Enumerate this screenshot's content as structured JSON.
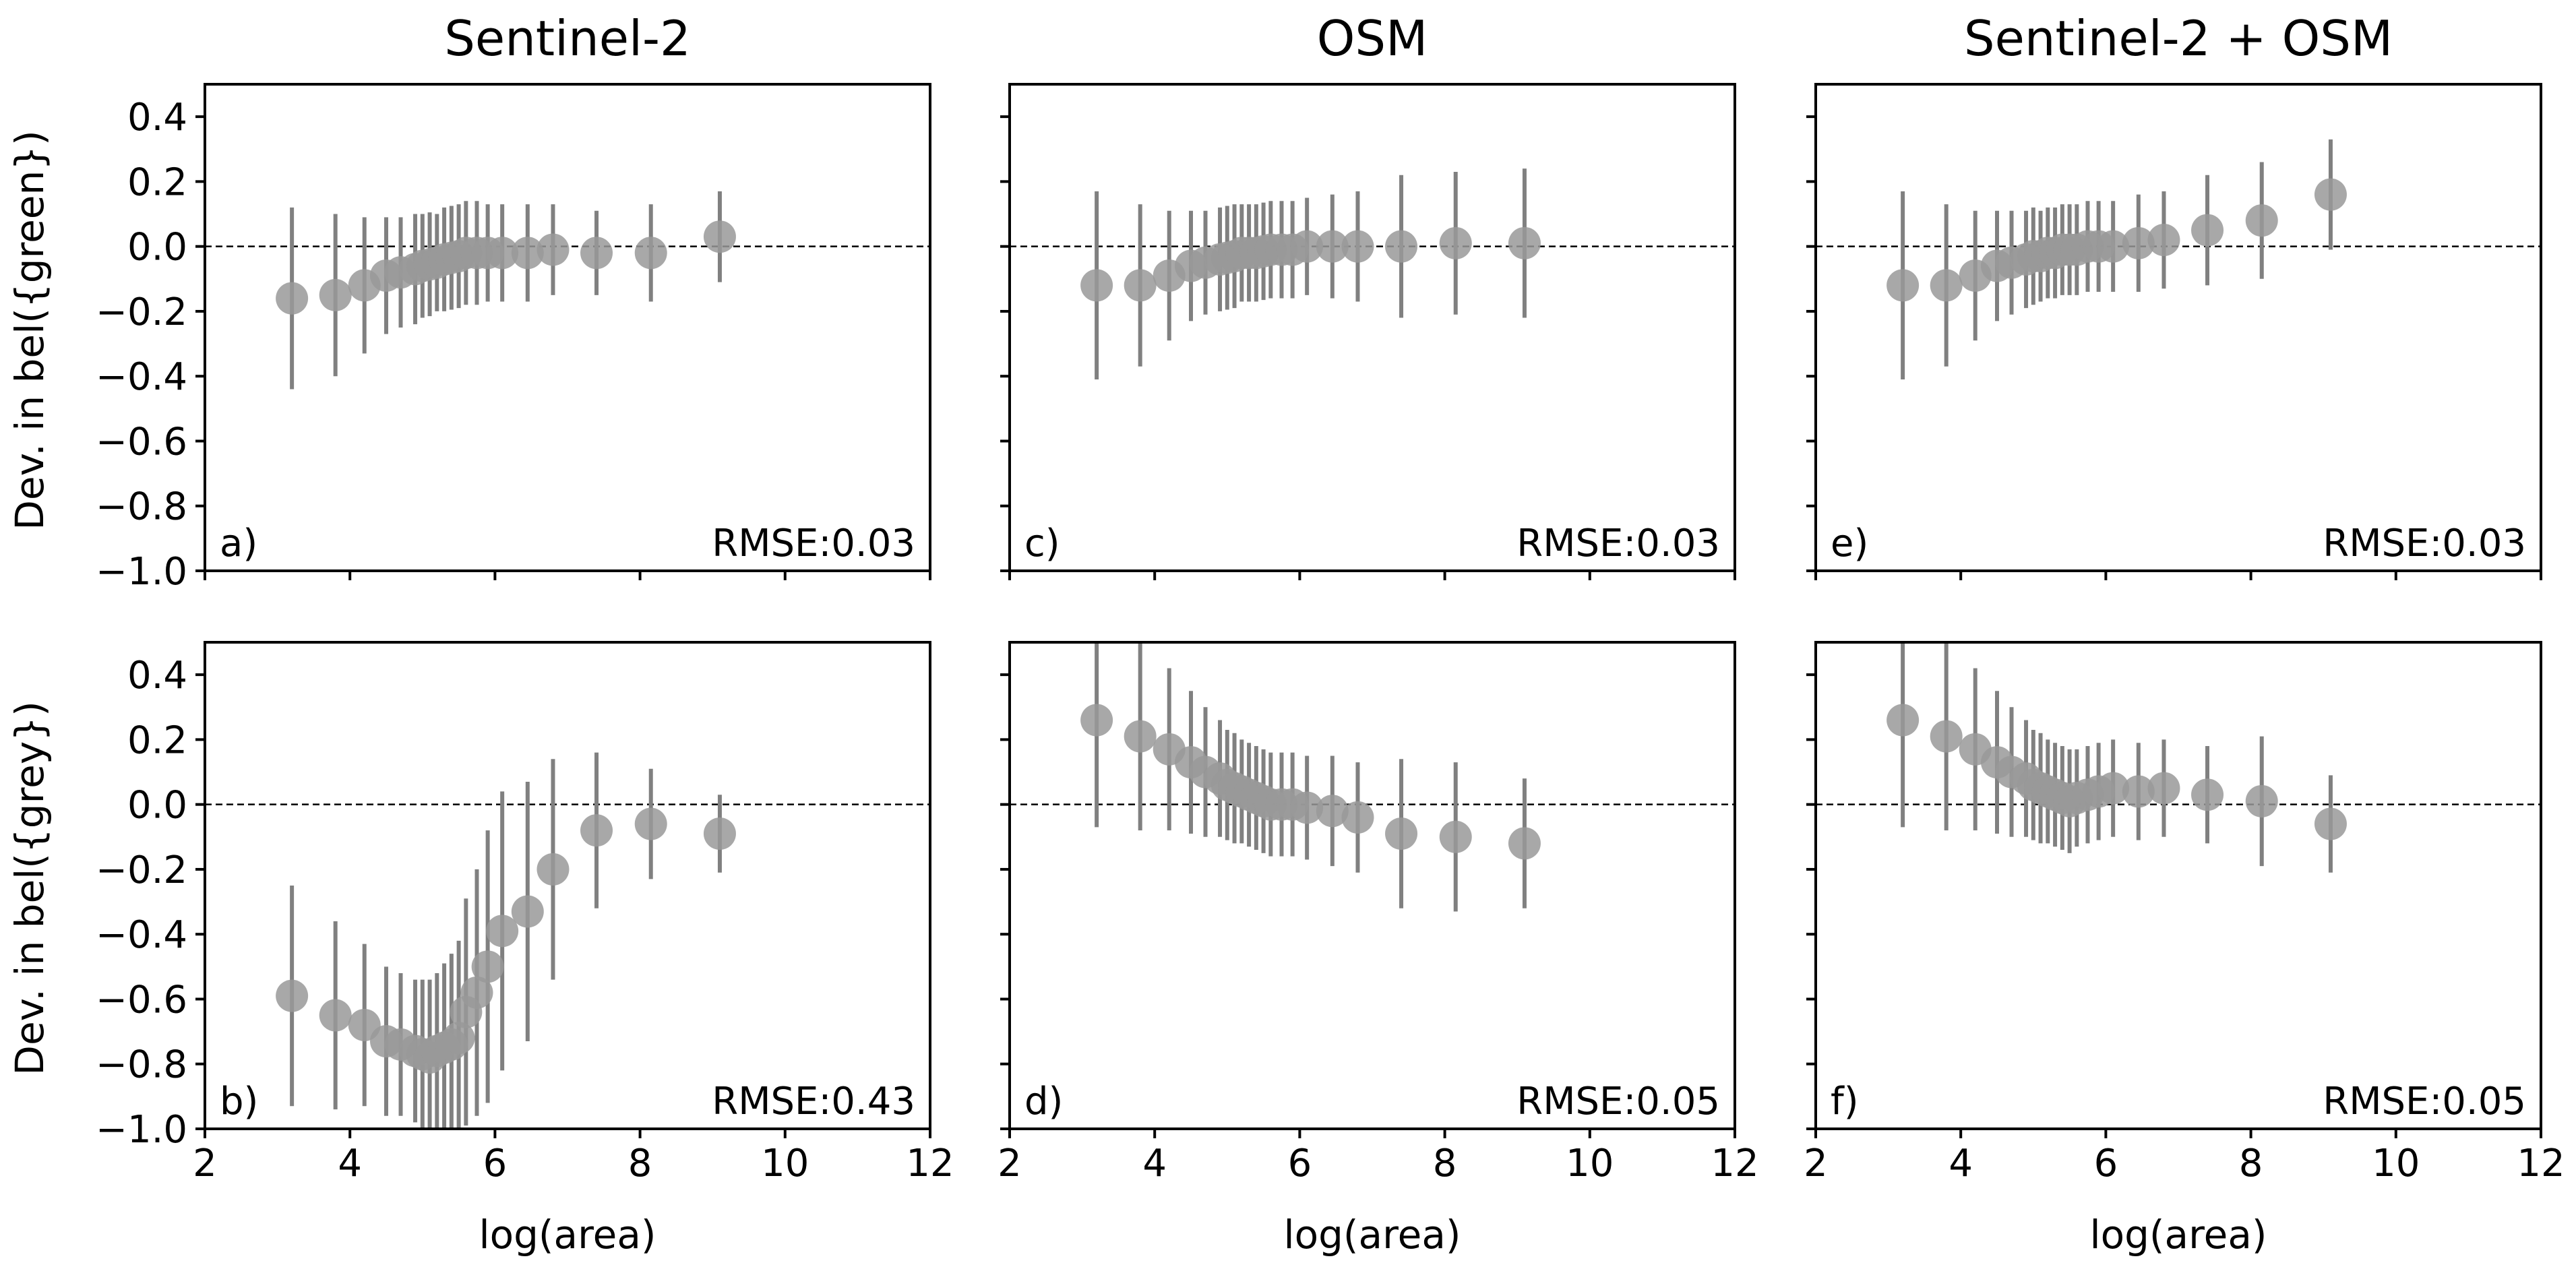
{
  "chart_data": [
    {
      "type": "scatter",
      "panel": "a)",
      "title": "Sentinel-2",
      "xlabel": "",
      "ylabel": "Dev. in bel({green})",
      "annotation": "RMSE:0.03",
      "xlim": [
        2,
        12
      ],
      "ylim": [
        -1.0,
        0.5
      ],
      "x_ticks": [
        2,
        4,
        6,
        8,
        10,
        12
      ],
      "y_ticks": [
        0.4,
        0.2,
        0.0,
        -0.2,
        -0.4,
        -0.6,
        -0.8,
        -1.0
      ],
      "x_tick_labels": [
        "2",
        "4",
        "6",
        "8",
        "10",
        "12"
      ],
      "y_tick_labels": [
        "0.4",
        "0.2",
        "0.0",
        "−0.2",
        "−0.4",
        "−0.6",
        "−0.8",
        "−1.0"
      ],
      "show_x_tick_labels": false,
      "show_y_tick_labels": true,
      "x": [
        3.2,
        3.8,
        4.2,
        4.5,
        4.7,
        4.9,
        5.0,
        5.1,
        5.2,
        5.3,
        5.4,
        5.5,
        5.6,
        5.75,
        5.9,
        6.1,
        6.45,
        6.8,
        7.4,
        8.15,
        9.1
      ],
      "y": [
        -0.16,
        -0.15,
        -0.12,
        -0.09,
        -0.08,
        -0.07,
        -0.06,
        -0.055,
        -0.05,
        -0.04,
        -0.035,
        -0.03,
        -0.02,
        -0.02,
        -0.02,
        -0.02,
        -0.02,
        -0.01,
        -0.02,
        -0.02,
        0.03
      ],
      "err": [
        0.28,
        0.25,
        0.21,
        0.18,
        0.17,
        0.17,
        0.16,
        0.16,
        0.15,
        0.16,
        0.16,
        0.16,
        0.16,
        0.16,
        0.15,
        0.15,
        0.15,
        0.14,
        0.13,
        0.15,
        0.14
      ]
    },
    {
      "type": "scatter",
      "panel": "b)",
      "title": "",
      "xlabel": "log(area)",
      "ylabel": "Dev. in bel({grey})",
      "annotation": "RMSE:0.43",
      "xlim": [
        2,
        12
      ],
      "ylim": [
        -1.0,
        0.5
      ],
      "x_ticks": [
        2,
        4,
        6,
        8,
        10,
        12
      ],
      "y_ticks": [
        0.4,
        0.2,
        0.0,
        -0.2,
        -0.4,
        -0.6,
        -0.8,
        -1.0
      ],
      "x_tick_labels": [
        "2",
        "4",
        "6",
        "8",
        "10",
        "12"
      ],
      "y_tick_labels": [
        "0.4",
        "0.2",
        "0.0",
        "−0.2",
        "−0.4",
        "−0.6",
        "−0.8",
        "−1.0"
      ],
      "show_x_tick_labels": true,
      "show_y_tick_labels": true,
      "x": [
        3.2,
        3.8,
        4.2,
        4.5,
        4.7,
        4.9,
        5.0,
        5.1,
        5.2,
        5.3,
        5.4,
        5.5,
        5.6,
        5.75,
        5.9,
        6.1,
        6.45,
        6.8,
        7.4,
        8.15,
        9.1
      ],
      "y": [
        -0.59,
        -0.65,
        -0.68,
        -0.73,
        -0.74,
        -0.76,
        -0.77,
        -0.78,
        -0.76,
        -0.75,
        -0.74,
        -0.72,
        -0.64,
        -0.58,
        -0.5,
        -0.39,
        -0.33,
        -0.2,
        -0.08,
        -0.06,
        -0.09
      ],
      "err": [
        0.34,
        0.29,
        0.25,
        0.23,
        0.22,
        0.22,
        0.23,
        0.24,
        0.24,
        0.26,
        0.28,
        0.3,
        0.35,
        0.38,
        0.42,
        0.43,
        0.4,
        0.34,
        0.24,
        0.17,
        0.12
      ]
    },
    {
      "type": "scatter",
      "panel": "c)",
      "title": "OSM",
      "xlabel": "",
      "ylabel": "",
      "annotation": "RMSE:0.03",
      "xlim": [
        2,
        12
      ],
      "ylim": [
        -1.0,
        0.5
      ],
      "x_ticks": [
        2,
        4,
        6,
        8,
        10,
        12
      ],
      "y_ticks": [
        0.4,
        0.2,
        0.0,
        -0.2,
        -0.4,
        -0.6,
        -0.8,
        -1.0
      ],
      "x_tick_labels": [
        "2",
        "4",
        "6",
        "8",
        "10",
        "12"
      ],
      "y_tick_labels": [
        "0.4",
        "0.2",
        "0.0",
        "−0.2",
        "−0.4",
        "−0.6",
        "−0.8",
        "−1.0"
      ],
      "show_x_tick_labels": false,
      "show_y_tick_labels": false,
      "x": [
        3.2,
        3.8,
        4.2,
        4.5,
        4.7,
        4.9,
        5.0,
        5.1,
        5.2,
        5.3,
        5.4,
        5.5,
        5.6,
        5.75,
        5.9,
        6.1,
        6.45,
        6.8,
        7.4,
        8.15,
        9.1
      ],
      "y": [
        -0.12,
        -0.12,
        -0.09,
        -0.06,
        -0.05,
        -0.04,
        -0.035,
        -0.03,
        -0.02,
        -0.02,
        -0.02,
        -0.015,
        -0.01,
        -0.01,
        -0.01,
        0.0,
        0.0,
        0.0,
        0.0,
        0.01,
        0.01
      ],
      "err": [
        0.29,
        0.25,
        0.2,
        0.17,
        0.16,
        0.16,
        0.16,
        0.16,
        0.15,
        0.15,
        0.15,
        0.15,
        0.15,
        0.15,
        0.15,
        0.15,
        0.16,
        0.17,
        0.22,
        0.22,
        0.23
      ]
    },
    {
      "type": "scatter",
      "panel": "d)",
      "title": "",
      "xlabel": "log(area)",
      "ylabel": "",
      "annotation": "RMSE:0.05",
      "xlim": [
        2,
        12
      ],
      "ylim": [
        -1.0,
        0.5
      ],
      "x_ticks": [
        2,
        4,
        6,
        8,
        10,
        12
      ],
      "y_ticks": [
        0.4,
        0.2,
        0.0,
        -0.2,
        -0.4,
        -0.6,
        -0.8,
        -1.0
      ],
      "x_tick_labels": [
        "2",
        "4",
        "6",
        "8",
        "10",
        "12"
      ],
      "y_tick_labels": [
        "0.4",
        "0.2",
        "0.0",
        "−0.2",
        "−0.4",
        "−0.6",
        "−0.8",
        "−1.0"
      ],
      "show_x_tick_labels": true,
      "show_y_tick_labels": false,
      "x": [
        3.2,
        3.8,
        4.2,
        4.5,
        4.7,
        4.9,
        5.0,
        5.1,
        5.2,
        5.3,
        5.4,
        5.5,
        5.6,
        5.75,
        5.9,
        6.1,
        6.45,
        6.8,
        7.4,
        8.15,
        9.1
      ],
      "y": [
        0.26,
        0.21,
        0.17,
        0.13,
        0.1,
        0.08,
        0.06,
        0.05,
        0.04,
        0.03,
        0.02,
        0.01,
        0.0,
        0.0,
        0.0,
        -0.01,
        -0.02,
        -0.04,
        -0.09,
        -0.1,
        -0.12
      ],
      "err": [
        0.33,
        0.29,
        0.25,
        0.22,
        0.2,
        0.18,
        0.17,
        0.17,
        0.16,
        0.16,
        0.16,
        0.16,
        0.16,
        0.16,
        0.16,
        0.16,
        0.17,
        0.17,
        0.23,
        0.23,
        0.2
      ]
    },
    {
      "type": "scatter",
      "panel": "e)",
      "title": "Sentinel-2 + OSM",
      "xlabel": "",
      "ylabel": "",
      "annotation": "RMSE:0.03",
      "xlim": [
        2,
        12
      ],
      "ylim": [
        -1.0,
        0.5
      ],
      "x_ticks": [
        2,
        4,
        6,
        8,
        10,
        12
      ],
      "y_ticks": [
        0.4,
        0.2,
        0.0,
        -0.2,
        -0.4,
        -0.6,
        -0.8,
        -1.0
      ],
      "x_tick_labels": [
        "2",
        "4",
        "6",
        "8",
        "10",
        "12"
      ],
      "y_tick_labels": [
        "0.4",
        "0.2",
        "0.0",
        "−0.2",
        "−0.4",
        "−0.6",
        "−0.8",
        "−1.0"
      ],
      "show_x_tick_labels": false,
      "show_y_tick_labels": false,
      "x": [
        3.2,
        3.8,
        4.2,
        4.5,
        4.7,
        4.9,
        5.0,
        5.1,
        5.2,
        5.3,
        5.4,
        5.5,
        5.6,
        5.75,
        5.9,
        6.1,
        6.45,
        6.8,
        7.4,
        8.15,
        9.1
      ],
      "y": [
        -0.12,
        -0.12,
        -0.09,
        -0.06,
        -0.05,
        -0.04,
        -0.03,
        -0.03,
        -0.02,
        -0.02,
        -0.01,
        -0.01,
        -0.01,
        0.0,
        0.0,
        0.0,
        0.01,
        0.02,
        0.05,
        0.08,
        0.16
      ],
      "err": [
        0.29,
        0.25,
        0.2,
        0.17,
        0.16,
        0.15,
        0.15,
        0.14,
        0.14,
        0.14,
        0.14,
        0.14,
        0.14,
        0.14,
        0.14,
        0.14,
        0.15,
        0.15,
        0.17,
        0.18,
        0.17
      ]
    },
    {
      "type": "scatter",
      "panel": "f)",
      "title": "",
      "xlabel": "log(area)",
      "ylabel": "",
      "annotation": "RMSE:0.05",
      "xlim": [
        2,
        12
      ],
      "ylim": [
        -1.0,
        0.5
      ],
      "x_ticks": [
        2,
        4,
        6,
        8,
        10,
        12
      ],
      "y_ticks": [
        0.4,
        0.2,
        0.0,
        -0.2,
        -0.4,
        -0.6,
        -0.8,
        -1.0
      ],
      "x_tick_labels": [
        "2",
        "4",
        "6",
        "8",
        "10",
        "12"
      ],
      "y_tick_labels": [
        "0.4",
        "0.2",
        "0.0",
        "−0.2",
        "−0.4",
        "−0.6",
        "−0.8",
        "−1.0"
      ],
      "show_x_tick_labels": true,
      "show_y_tick_labels": false,
      "x": [
        3.2,
        3.8,
        4.2,
        4.5,
        4.7,
        4.9,
        5.0,
        5.1,
        5.2,
        5.3,
        5.4,
        5.5,
        5.6,
        5.75,
        5.9,
        6.1,
        6.45,
        6.8,
        7.4,
        8.15,
        9.1
      ],
      "y": [
        0.26,
        0.21,
        0.17,
        0.13,
        0.1,
        0.08,
        0.06,
        0.05,
        0.04,
        0.03,
        0.02,
        0.01,
        0.02,
        0.03,
        0.04,
        0.05,
        0.04,
        0.05,
        0.03,
        0.01,
        -0.06
      ],
      "err": [
        0.33,
        0.29,
        0.25,
        0.22,
        0.2,
        0.18,
        0.17,
        0.17,
        0.16,
        0.16,
        0.16,
        0.16,
        0.15,
        0.15,
        0.15,
        0.15,
        0.15,
        0.15,
        0.15,
        0.2,
        0.15
      ]
    }
  ]
}
